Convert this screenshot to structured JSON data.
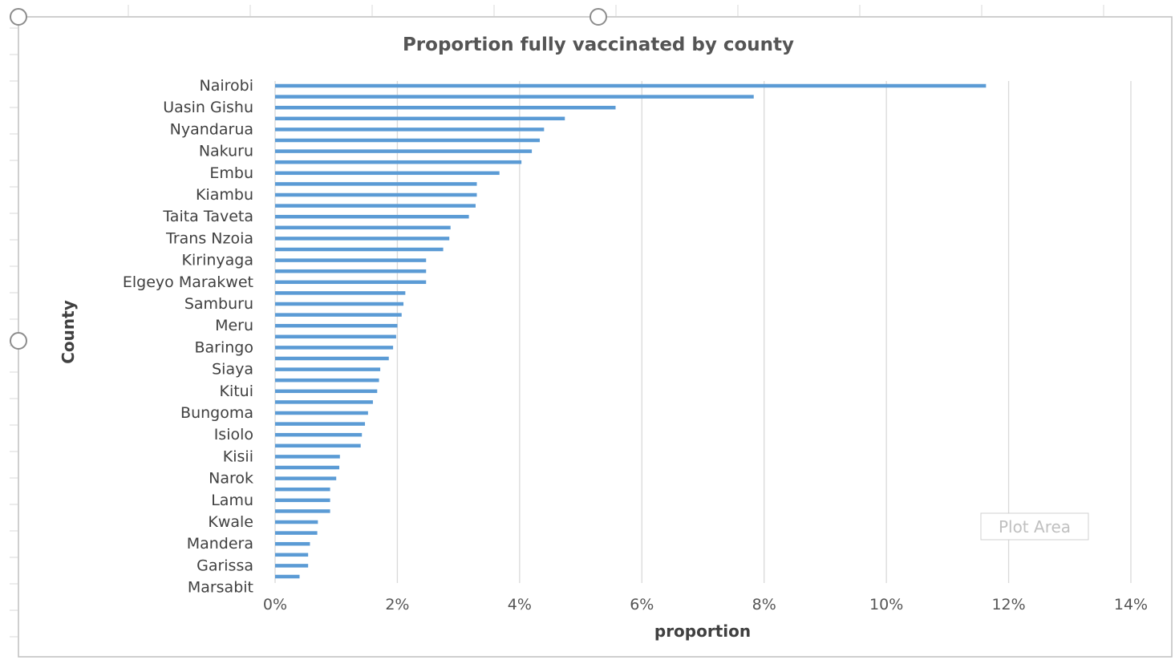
{
  "overlay": {
    "tooltip": "Plot Area"
  },
  "colors": {
    "bar": "#5b9bd5",
    "grid": "#d9d9d9",
    "frame": "#bfbfbf"
  },
  "chart_data": {
    "type": "bar",
    "orientation": "horizontal",
    "title": "Proportion fully vaccinated by county",
    "xlabel": "proportion",
    "ylabel": "County",
    "xlim": [
      0,
      0.14
    ],
    "x_ticks": [
      0,
      0.02,
      0.04,
      0.06,
      0.08,
      0.1,
      0.12,
      0.14
    ],
    "x_tick_labels": [
      "0%",
      "2%",
      "4%",
      "6%",
      "8%",
      "10%",
      "12%",
      "14%"
    ],
    "grid": "vertical",
    "legend": "none",
    "category_labels_shown": [
      "Nairobi",
      "Uasin Gishu",
      "Nyandarua",
      "Nakuru",
      "Embu",
      "Kiambu",
      "Taita Taveta",
      "Trans Nzoia",
      "Kirinyaga",
      "Elgeyo Marakwet",
      "Samburu",
      "Meru",
      "Baringo",
      "Siaya",
      "Kitui",
      "Bungoma",
      "Isiolo",
      "Kisii",
      "Narok",
      "Lamu",
      "Kwale",
      "Mandera",
      "Garissa",
      "Marsabit"
    ],
    "values": [
      0.1163,
      0.0783,
      0.0557,
      0.0474,
      0.044,
      0.0433,
      0.042,
      0.0403,
      0.0367,
      0.033,
      0.033,
      0.0328,
      0.0317,
      0.0287,
      0.0285,
      0.0275,
      0.0247,
      0.0247,
      0.0247,
      0.0213,
      0.021,
      0.0207,
      0.02,
      0.0198,
      0.0193,
      0.0186,
      0.0172,
      0.017,
      0.0167,
      0.016,
      0.0152,
      0.0147,
      0.0142,
      0.014,
      0.0106,
      0.0105,
      0.01,
      0.009,
      0.009,
      0.009,
      0.007,
      0.0069,
      0.0057,
      0.0054,
      0.0054,
      0.004
    ]
  }
}
